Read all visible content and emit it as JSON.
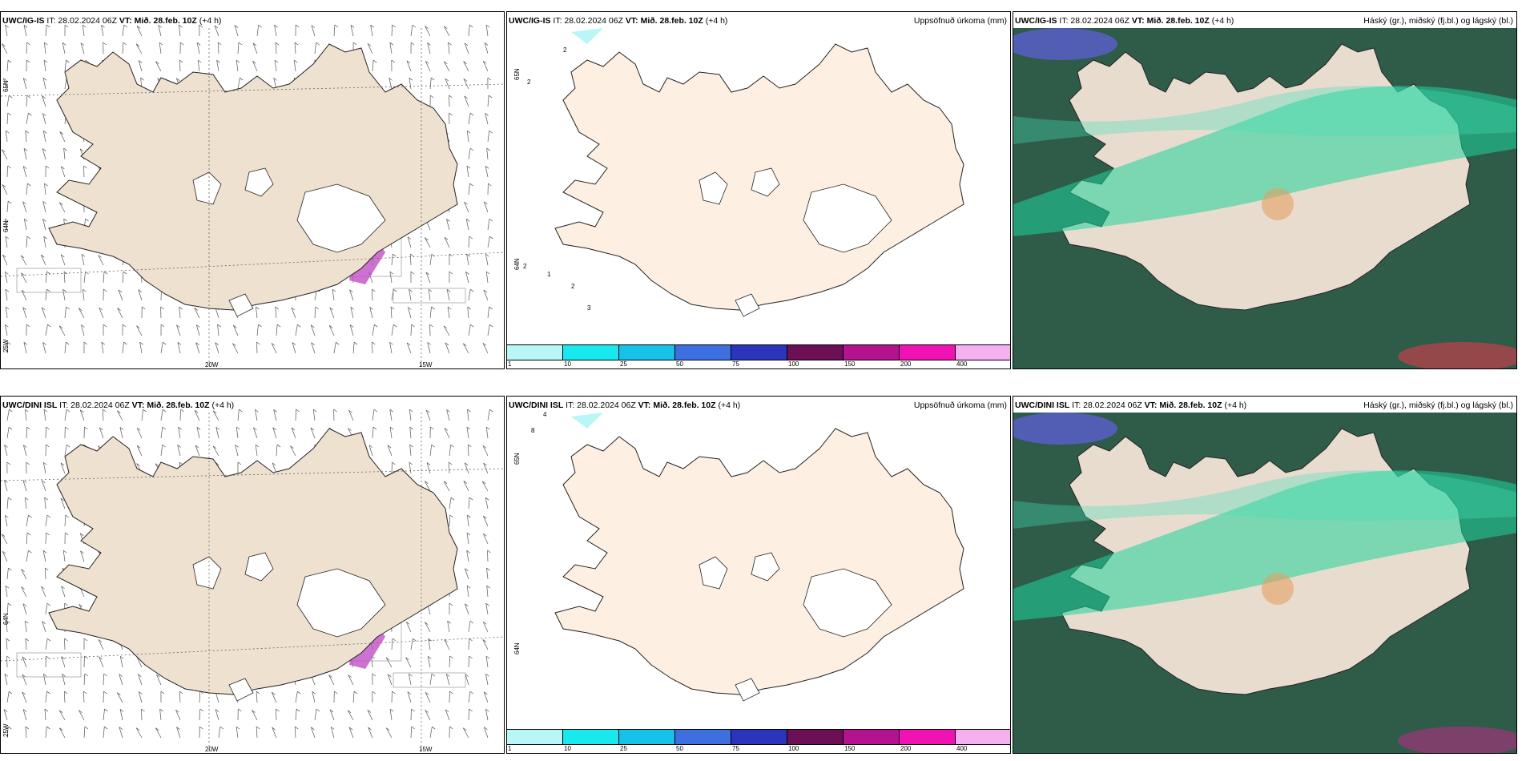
{
  "colors": {
    "land": "#efe1cf",
    "land_precip": "#fdf0e2",
    "ice": "#ffffff",
    "precip_scale": [
      "#b9f7f7",
      "#18e9ee",
      "#17c2e8",
      "#3e6fe0",
      "#2a35bb",
      "#6c0f55",
      "#b3138e",
      "#f012b2",
      "#f5b0ef"
    ],
    "cloud_dark": "#2e5c49",
    "cloud_green": "#1fd49a"
  },
  "panels": {
    "r1c1": {
      "model": "UWC/IG-IS",
      "it": "IT: 28.02.2024 06Z",
      "vt_label": "VT:",
      "vt": "Mið. 28.feb. 10Z",
      "lead": "(+4 h)",
      "right": ""
    },
    "r1c2": {
      "model": "UWC/IG-IS",
      "it": "IT: 28.02.2024 06Z",
      "vt_label": "VT:",
      "vt": "Mið. 28.feb. 10Z",
      "lead": "(+4 h)",
      "right": "Uppsöfnuð úrkoma (mm)"
    },
    "r1c3": {
      "model": "UWC/IG-IS",
      "it": "IT: 28.02.2024 06Z",
      "vt_label": "VT:",
      "vt": "Mið. 28.feb. 10Z",
      "lead": "(+4 h)",
      "right": "Háský (gr.), miðský (fj.bl.) og lágský (bl.)"
    },
    "r2c1": {
      "model": "UWC/DINI ISL",
      "it": "IT: 28.02.2024 06Z",
      "vt_label": "VT:",
      "vt": "Mið. 28.feb. 10Z",
      "lead": "(+4 h)",
      "right": ""
    },
    "r2c2": {
      "model": "UWC/DINI ISL",
      "it": "IT: 28.02.2024 06Z",
      "vt_label": "VT:",
      "vt": "Mið. 28.feb. 10Z",
      "lead": "(+4 h)",
      "right": "Uppsöfnuð úrkoma (mm)"
    },
    "r2c3": {
      "model": "UWC/DINI ISL",
      "it": "IT: 28.02.2024 06Z",
      "vt_label": "VT:",
      "vt": "Mið. 28.feb. 10Z",
      "lead": "(+4 h)",
      "right": "Háský (gr.), miðský (fj.bl.) og lágský (bl.)"
    }
  },
  "axes": {
    "lon1": "20W",
    "lon2": "15W",
    "lat_a": "65N",
    "lat_b": "64N",
    "lat_c": "25W"
  },
  "colorbar_ticks": [
    "1",
    "10",
    "25",
    "50",
    "75",
    "100",
    "150",
    "200",
    "400"
  ],
  "precip_labels_r1": [
    "2",
    "2",
    "2",
    "1",
    "2",
    "3"
  ],
  "precip_labels_r2": [
    "4",
    "8"
  ]
}
